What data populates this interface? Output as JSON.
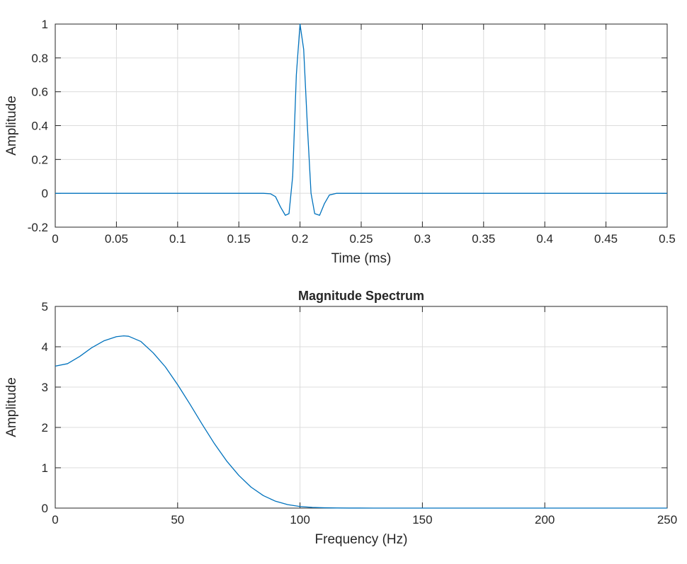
{
  "colors": {
    "series": "#0072BD"
  },
  "chart_data": [
    {
      "type": "line",
      "title": "",
      "xlabel": "Time (ms)",
      "ylabel": "Amplitude",
      "xlim": [
        0,
        0.5
      ],
      "ylim": [
        -0.2,
        1
      ],
      "grid": true,
      "xticks": [
        "0",
        "0.05",
        "0.1",
        "0.15",
        "0.2",
        "0.25",
        "0.3",
        "0.35",
        "0.4",
        "0.45",
        "0.5"
      ],
      "yticks": [
        "-0.2",
        "0",
        "0.2",
        "0.4",
        "0.6",
        "0.8",
        "1"
      ],
      "series": [
        {
          "x": [
            0,
            0.17,
            0.176,
            0.18,
            0.184,
            0.188,
            0.191,
            0.194,
            0.197,
            0.2,
            0.203,
            0.206,
            0.209,
            0.212,
            0.216,
            0.22,
            0.224,
            0.23,
            0.5
          ],
          "y": [
            0,
            0,
            -0.003,
            -0.02,
            -0.08,
            -0.13,
            -0.12,
            0.1,
            0.7,
            1.0,
            0.85,
            0.4,
            0.0,
            -0.12,
            -0.13,
            -0.06,
            -0.01,
            0,
            0
          ]
        }
      ]
    },
    {
      "type": "line",
      "title": "Magnitude Spectrum",
      "xlabel": "Frequency (Hz)",
      "ylabel": "Amplitude",
      "xlim": [
        0,
        250
      ],
      "ylim": [
        0,
        5
      ],
      "grid": true,
      "xticks": [
        "0",
        "50",
        "100",
        "150",
        "200",
        "250"
      ],
      "yticks": [
        "0",
        "1",
        "2",
        "3",
        "4",
        "5"
      ],
      "series": [
        {
          "x": [
            0,
            5,
            10,
            15,
            20,
            25,
            28,
            30,
            35,
            40,
            45,
            50,
            55,
            60,
            65,
            70,
            75,
            80,
            85,
            90,
            95,
            100,
            105,
            110,
            115,
            120,
            130,
            140,
            150,
            175,
            200,
            250
          ],
          "y": [
            3.52,
            3.58,
            3.76,
            3.98,
            4.15,
            4.25,
            4.27,
            4.26,
            4.13,
            3.85,
            3.5,
            3.06,
            2.58,
            2.08,
            1.6,
            1.17,
            0.81,
            0.52,
            0.31,
            0.17,
            0.085,
            0.04,
            0.018,
            0.008,
            0.003,
            0.001,
            0.0003,
            0.0001,
            0,
            0,
            0,
            0
          ]
        }
      ]
    }
  ]
}
